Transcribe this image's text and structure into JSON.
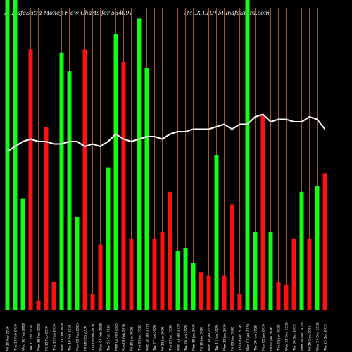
{
  "header": {
    "left": "MunafaSutra  Money Flow  Charts for 534091",
    "right": "(MCX   LTD) MunafaSutra.com"
  },
  "chart_data": {
    "type": "bar",
    "bar_max": 100,
    "categories": [
      "Fri 20 Feb 2026",
      "Thu 19 Feb 2026",
      "Wed 18 Feb 2026",
      "Tue 17 Feb 2026",
      "Mon 16 Feb 2026",
      "Fri 13 Feb 2026",
      "Thu 12 Feb 2026",
      "Wed 11 Feb 2026",
      "Tue 10 Feb 2026",
      "Mon 09 Feb 2026",
      "Fri 06 Feb 2026",
      "Thu 05 Feb 2026",
      "Wed 04 Feb 2026",
      "Tue 03 Feb 2026",
      "Mon 02 Feb 2026",
      "Sun 01 Feb 2026",
      "Fri 30 Jan 2026",
      "Thu 29 Jan 2026",
      "Wed 28 Jan 2026",
      "Tue 27 Jan 2026",
      "Fri 23 Jan 2026",
      "Thu 22 Jan 2026",
      "Wed 21 Jan 2026",
      "Tue 20 Jan 2026",
      "Mon 19 Jan 2026",
      "Fri 16 Jan 2026",
      "Wed 14 Jan 2026",
      "Tue 13 Jan 2026",
      "Mon 12 Jan 2026",
      "Fri 09 Jan 2026",
      "Thu 08 Jan 2026",
      "Wed 07 Jan 2026",
      "Tue 06 Jan 2026",
      "Mon 05 Jan 2026",
      "Fri 02 Jan 2026",
      "Thu 01 Jan 2026",
      "Wed 31 Dec 2025",
      "Tue 30 Dec 2025",
      "Mon 29 Dec 2025",
      "Fri 26 Dec 2025",
      "Wed 24 Dec 2025",
      "Tue 23 Dec 2025"
    ],
    "series": [
      {
        "values": [
          100,
          100,
          36,
          84,
          3,
          59,
          9,
          83,
          77,
          30,
          84,
          5,
          21,
          46,
          89,
          80,
          23,
          94,
          78,
          23,
          25,
          38,
          19,
          20,
          15,
          12,
          11,
          50,
          11,
          34,
          5,
          100,
          25,
          63,
          25,
          9,
          8,
          23,
          38,
          23,
          40,
          44
        ],
        "colors": [
          "g",
          "g",
          "g",
          "r",
          "r",
          "r",
          "r",
          "g",
          "g",
          "g",
          "r",
          "r",
          "r",
          "g",
          "g",
          "r",
          "r",
          "g",
          "g",
          "r",
          "r",
          "r",
          "g",
          "g",
          "g",
          "r",
          "r",
          "g",
          "r",
          "r",
          "r",
          "g",
          "g",
          "r",
          "g",
          "r",
          "r",
          "r",
          "g",
          "r",
          "g",
          "r"
        ]
      },
      {
        "values": [
          52,
          54,
          56,
          57,
          56,
          56,
          55,
          55,
          56,
          56,
          54,
          55,
          54,
          56,
          59,
          57,
          56,
          57,
          58,
          58,
          57,
          59,
          60,
          60,
          61,
          61,
          61,
          62,
          63,
          61,
          63,
          63,
          66,
          67,
          64,
          65,
          65,
          64,
          64,
          66,
          65,
          61
        ]
      }
    ],
    "colors": {
      "g": "#11ff11",
      "r": "#ff1111",
      "grid": "#a0522d",
      "line": "#ffffff",
      "background": "#000000"
    }
  }
}
